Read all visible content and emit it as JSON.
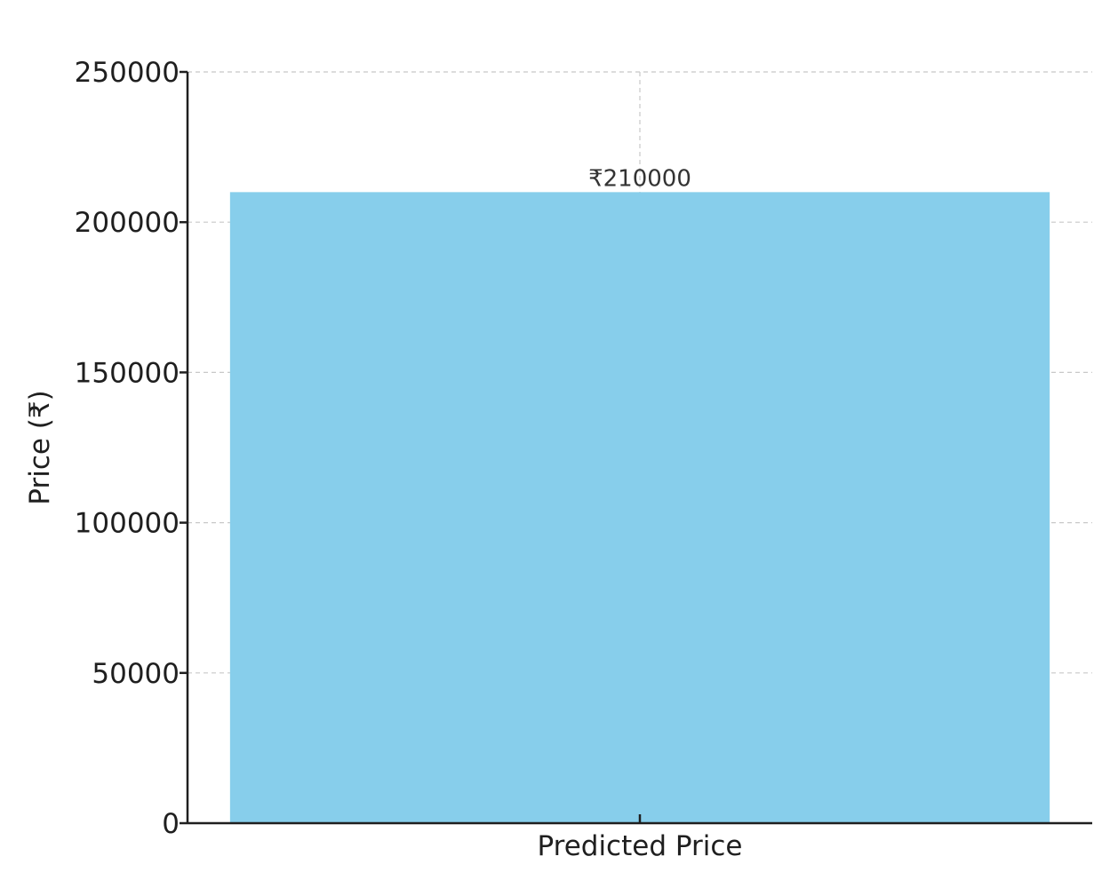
{
  "chart_data": {
    "type": "bar",
    "categories": [
      "Predicted Price"
    ],
    "values": [
      210000
    ],
    "title": "",
    "xlabel": "",
    "ylabel": "Price (₹)",
    "ylim": [
      0,
      250000
    ],
    "yticks": [
      0,
      50000,
      100000,
      150000,
      200000,
      250000
    ],
    "data_labels": [
      "₹210000"
    ],
    "grid": true,
    "colors": {
      "bar": "#87CEEB"
    }
  }
}
